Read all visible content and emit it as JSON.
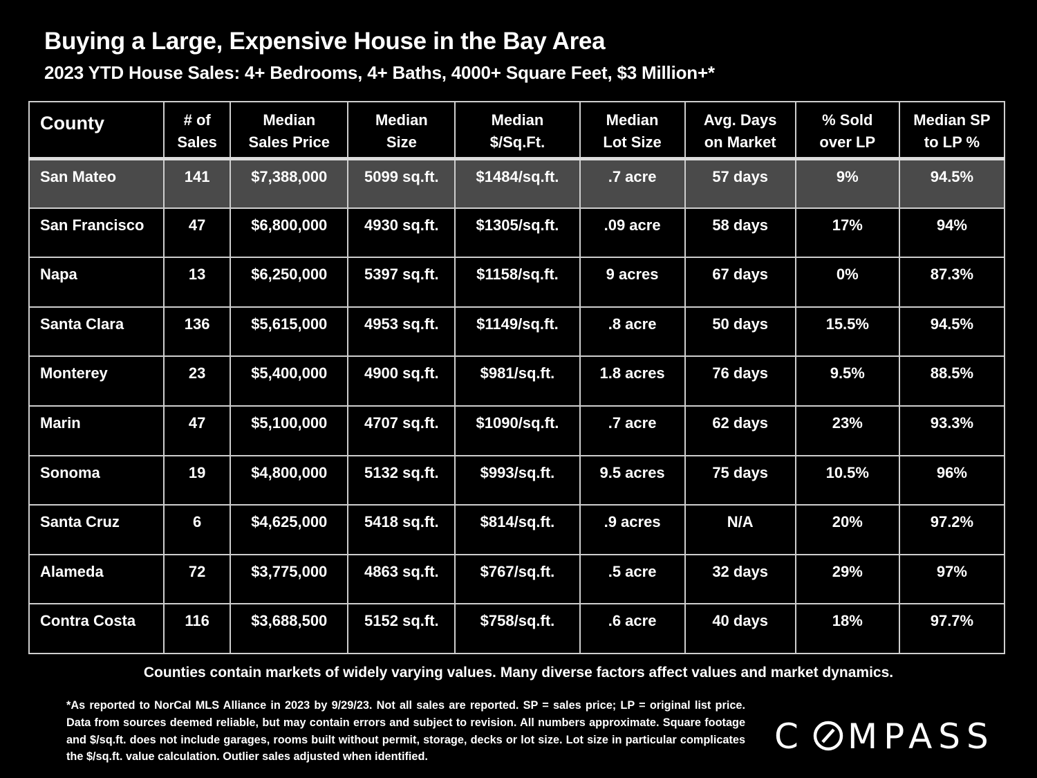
{
  "title": "Buying a Large, Expensive House in the Bay Area",
  "subtitle": "2023 YTD House Sales:  4+ Bedrooms, 4+ Baths, 4000+ Square Feet, $3 Million+*",
  "table": {
    "headers": [
      [
        "County"
      ],
      [
        "# of",
        "Sales"
      ],
      [
        "Median",
        "Sales Price"
      ],
      [
        "Median",
        "Size"
      ],
      [
        "Median",
        "$/Sq.Ft."
      ],
      [
        "Median",
        "Lot Size"
      ],
      [
        "Avg. Days",
        "on Market"
      ],
      [
        "% Sold",
        "over LP"
      ],
      [
        "Median SP",
        "to LP %"
      ]
    ],
    "rows": [
      [
        "San Mateo",
        "141",
        "$7,388,000",
        "5099 sq.ft.",
        "$1484/sq.ft.",
        ".7 acre",
        "57 days",
        "9%",
        "94.5%"
      ],
      [
        "San Francisco",
        "47",
        "$6,800,000",
        "4930 sq.ft.",
        "$1305/sq.ft.",
        ".09 acre",
        "58 days",
        "17%",
        "94%"
      ],
      [
        "Napa",
        "13",
        "$6,250,000",
        "5397 sq.ft.",
        "$1158/sq.ft.",
        "9 acres",
        "67 days",
        "0%",
        "87.3%"
      ],
      [
        "Santa Clara",
        "136",
        "$5,615,000",
        "4953 sq.ft.",
        "$1149/sq.ft.",
        ".8 acre",
        "50 days",
        "15.5%",
        "94.5%"
      ],
      [
        "Monterey",
        "23",
        "$5,400,000",
        "4900 sq.ft.",
        "$981/sq.ft.",
        "1.8 acres",
        "76 days",
        "9.5%",
        "88.5%"
      ],
      [
        "Marin",
        "47",
        "$5,100,000",
        "4707 sq.ft.",
        "$1090/sq.ft.",
        ".7 acre",
        "62 days",
        "23%",
        "93.3%"
      ],
      [
        "Sonoma",
        "19",
        "$4,800,000",
        "5132 sq.ft.",
        "$993/sq.ft.",
        "9.5 acres",
        "75 days",
        "10.5%",
        "96%"
      ],
      [
        "Santa Cruz",
        "6",
        "$4,625,000",
        "5418 sq.ft.",
        "$814/sq.ft.",
        ".9 acres",
        "N/A",
        "20%",
        "97.2%"
      ],
      [
        "Alameda",
        "72",
        "$3,775,000",
        "4863 sq.ft.",
        "$767/sq.ft.",
        ".5 acre",
        "32 days",
        "29%",
        "97%"
      ],
      [
        "Contra Costa",
        "116",
        "$3,688,500",
        "5152 sq.ft.",
        "$758/sq.ft.",
        ".6 acre",
        "40 days",
        "18%",
        "97.7%"
      ]
    ],
    "highlight_row_color": "#4a4a4a",
    "border_color": "#cfcfcf"
  },
  "chart_data": {
    "type": "table",
    "title": "Buying a Large, Expensive House in the Bay Area",
    "subtitle": "2023 YTD House Sales:  4+ Bedrooms, 4+ Baths, 4000+ Square Feet, $3 Million+*",
    "columns": [
      "County",
      "# of Sales",
      "Median Sales Price",
      "Median Size",
      "Median $/Sq.Ft.",
      "Median Lot Size",
      "Avg. Days on Market",
      "% Sold over LP",
      "Median SP to LP %"
    ],
    "rows": [
      [
        "San Mateo",
        141,
        7388000,
        5099,
        1484,
        0.7,
        57,
        9,
        94.5
      ],
      [
        "San Francisco",
        47,
        6800000,
        4930,
        1305,
        0.09,
        58,
        17,
        94
      ],
      [
        "Napa",
        13,
        6250000,
        5397,
        1158,
        9,
        67,
        0,
        87.3
      ],
      [
        "Santa Clara",
        136,
        5615000,
        4953,
        1149,
        0.8,
        50,
        15.5,
        94.5
      ],
      [
        "Monterey",
        23,
        5400000,
        4900,
        981,
        1.8,
        76,
        9.5,
        88.5
      ],
      [
        "Marin",
        47,
        5100000,
        4707,
        1090,
        0.7,
        62,
        23,
        93.3
      ],
      [
        "Sonoma",
        19,
        4800000,
        5132,
        993,
        9.5,
        75,
        10.5,
        96
      ],
      [
        "Santa Cruz",
        6,
        4625000,
        5418,
        814,
        0.9,
        null,
        20,
        97.2
      ],
      [
        "Alameda",
        72,
        3775000,
        4863,
        767,
        0.5,
        32,
        29,
        97
      ],
      [
        "Contra Costa",
        116,
        3688500,
        5152,
        758,
        0.6,
        40,
        18,
        97.7
      ]
    ]
  },
  "note": "Counties contain markets of widely varying values. Many diverse factors affect values and market dynamics.",
  "footnote": "*As reported to NorCal MLS Alliance in 2023 by 9/29/23. Not all sales are reported. SP = sales price;  LP = original list price. Data from sources deemed reliable, but may contain errors and subject to revision. All numbers approximate. Square footage and $/sq.ft. does not include garages, rooms built without permit, storage, decks or lot size. Lot size in particular complicates the $/sq.ft. value calculation. Outlier sales adjusted when identified.",
  "logo": {
    "pre": "C",
    "post": "MPASS"
  }
}
